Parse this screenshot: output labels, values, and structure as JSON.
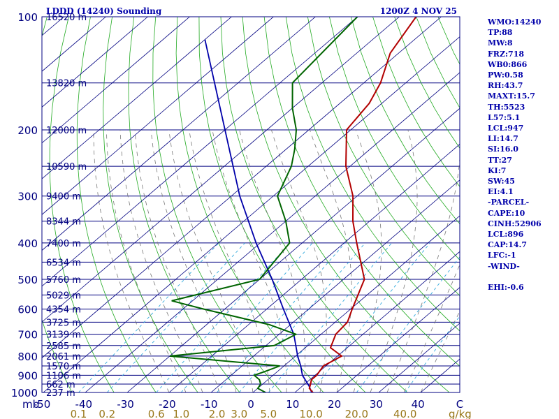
{
  "header": {
    "title": "LDDD (14240) Sounding",
    "time": "1200Z  4 NOV 25"
  },
  "stats": [
    "WMO:14240",
    "TP:88",
    "MW:8",
    "FRZ:718",
    "WB0:866",
    "PW:0.58",
    "RH:43.7",
    "MAXT:15.7",
    "TH:5523",
    "L57:5.1",
    "LCL:947",
    "LI:14.7",
    "SI:16.0",
    "TT:27",
    "KI:7",
    "SW:45",
    "EI:4.1",
    "-PARCEL-",
    "CAPE:10",
    "CINH:52906",
    "LCL:896",
    "CAP:14.7",
    "LFC:-1",
    "-WIND-",
    "",
    "EHI:-0.6"
  ],
  "chart_data": {
    "type": "line",
    "title": "LDDD (14240) Sounding",
    "ylabel_unit": "mb",
    "xlabel_unit": "C",
    "mixing_ratio_unit": "g/kg",
    "y_scale": "log-pressure",
    "ylim": [
      1000,
      100
    ],
    "xlim": [
      -50,
      50
    ],
    "pressure_ticks": [
      100,
      200,
      300,
      400,
      500,
      600,
      700,
      800,
      900,
      1000
    ],
    "temperature_ticks": [
      -50,
      -40,
      -30,
      -20,
      -10,
      0,
      10,
      20,
      30,
      40,
      50
    ],
    "temperature_tick_labels": [
      "-50",
      "-40",
      "-30",
      "-20",
      "-10",
      "0",
      "10",
      "20",
      "30",
      "40",
      "C"
    ],
    "mixing_ratio_labels": [
      "0.1",
      "0.2",
      "0.6",
      "1.0",
      "2.0",
      "3.0",
      "5.0",
      "10.0",
      "20.0",
      "40.0"
    ],
    "height_labels": [
      {
        "p": 100,
        "text": "16520 m"
      },
      {
        "p": 150,
        "text": "13820 m"
      },
      {
        "p": 200,
        "text": "12000 m"
      },
      {
        "p": 250,
        "text": "10590 m"
      },
      {
        "p": 300,
        "text": "9400 m"
      },
      {
        "p": 350,
        "text": "8344 m"
      },
      {
        "p": 400,
        "text": "7400 m"
      },
      {
        "p": 450,
        "text": "6534 m"
      },
      {
        "p": 500,
        "text": "5760 m"
      },
      {
        "p": 550,
        "text": "5029 m"
      },
      {
        "p": 600,
        "text": "4354 m"
      },
      {
        "p": 650,
        "text": "3725 m"
      },
      {
        "p": 700,
        "text": "3139 m"
      },
      {
        "p": 750,
        "text": "2585 m"
      },
      {
        "p": 800,
        "text": "2061 m"
      },
      {
        "p": 850,
        "text": "1570 m"
      },
      {
        "p": 900,
        "text": "1106 m"
      },
      {
        "p": 950,
        "text": "662 m"
      },
      {
        "p": 1000,
        "text": "237 m"
      }
    ],
    "temperature": [
      [
        1000,
        14.3
      ],
      [
        975,
        12.3
      ],
      [
        950,
        11.4
      ],
      [
        925,
        10.4
      ],
      [
        900,
        10.4
      ],
      [
        850,
        9.4
      ],
      [
        800,
        11.0
      ],
      [
        760,
        6.0
      ],
      [
        700,
        3.5
      ],
      [
        650,
        2.9
      ],
      [
        600,
        0.4
      ],
      [
        500,
        -5.0
      ],
      [
        400,
        -17.0
      ],
      [
        350,
        -24.0
      ],
      [
        300,
        -31.0
      ],
      [
        250,
        -41.0
      ],
      [
        200,
        -51.0
      ],
      [
        170,
        -53.0
      ],
      [
        150,
        -56.0
      ],
      [
        125,
        -62.0
      ],
      [
        100,
        -66.0
      ]
    ],
    "dewpoint": [
      [
        1000,
        3.0
      ],
      [
        975,
        0.0
      ],
      [
        950,
        -0.5
      ],
      [
        925,
        -2.0
      ],
      [
        900,
        -4.5
      ],
      [
        880,
        -3.0
      ],
      [
        850,
        -1.0
      ],
      [
        800,
        -30.0
      ],
      [
        750,
        -8.0
      ],
      [
        700,
        -6.0
      ],
      [
        660,
        -15.0
      ],
      [
        600,
        -35.0
      ],
      [
        570,
        -45.0
      ],
      [
        500,
        -30.0
      ],
      [
        400,
        -33.0
      ],
      [
        350,
        -40.0
      ],
      [
        300,
        -49.0
      ],
      [
        250,
        -54.0
      ],
      [
        225,
        -58.0
      ],
      [
        200,
        -63.0
      ],
      [
        175,
        -70.0
      ],
      [
        150,
        -77.0
      ],
      [
        100,
        -80.0
      ]
    ],
    "parcel": [
      [
        1000,
        14.0
      ],
      [
        960,
        11.5
      ],
      [
        900,
        7.0
      ],
      [
        850,
        4.0
      ],
      [
        800,
        0.5
      ],
      [
        700,
        -6.5
      ],
      [
        600,
        -16.0
      ],
      [
        500,
        -27.0
      ],
      [
        400,
        -41.0
      ],
      [
        300,
        -58.0
      ],
      [
        200,
        -80.0
      ],
      [
        115,
        -110.0
      ]
    ]
  }
}
